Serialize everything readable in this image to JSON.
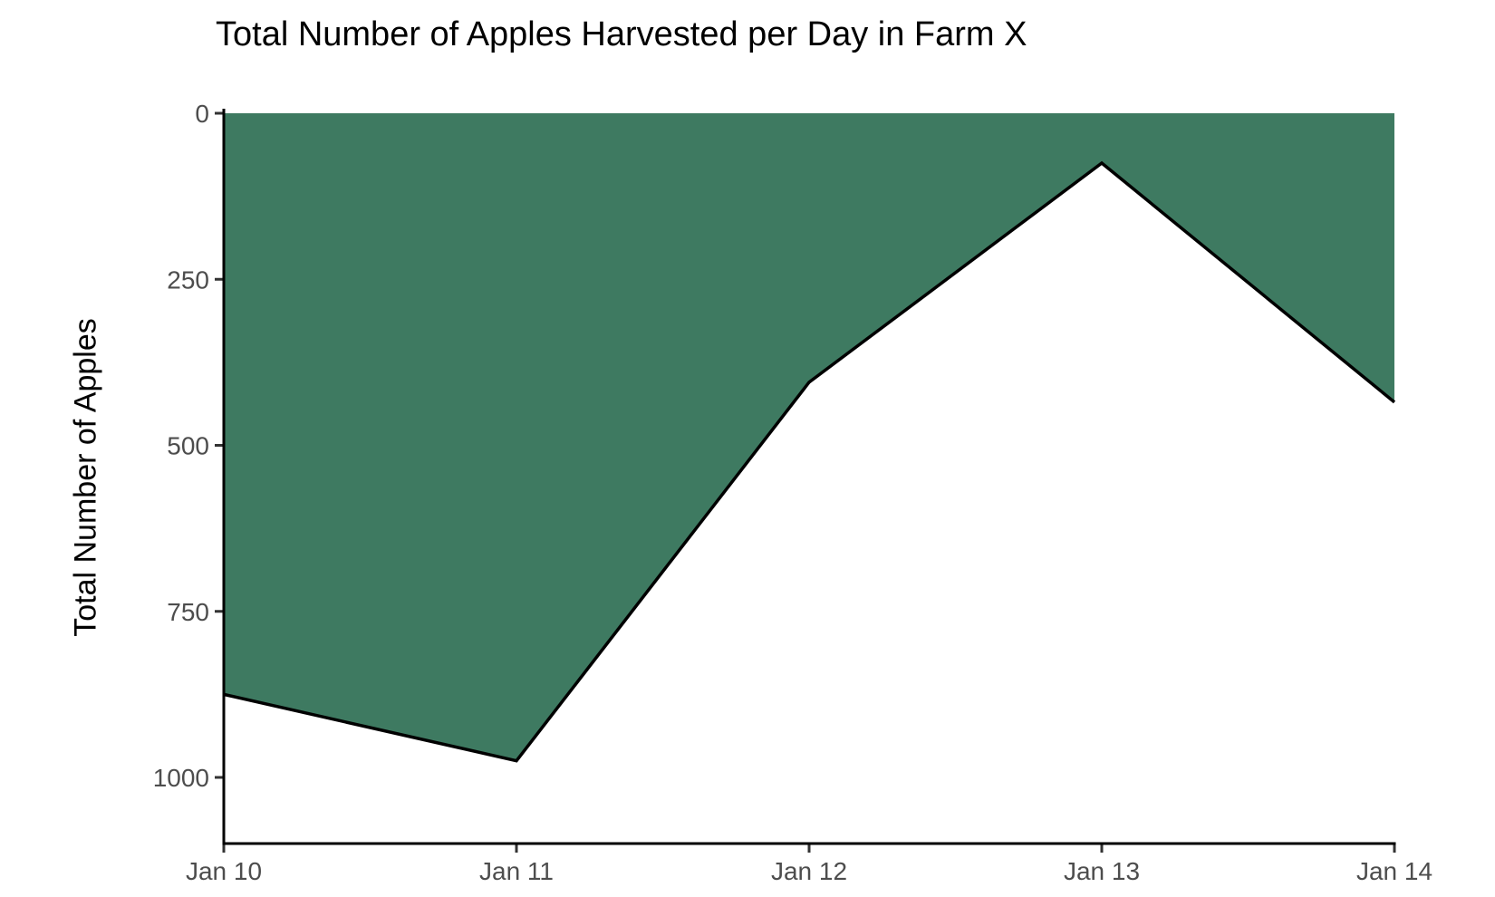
{
  "chart_data": {
    "type": "area",
    "title": "Total Number of Apples Harvested per Day in Farm X",
    "xlabel": "",
    "ylabel": "Total Number of Apples",
    "categories": [
      "Jan 10",
      "Jan 11",
      "Jan 12",
      "Jan 13",
      "Jan 14"
    ],
    "values": [
      875,
      975,
      405,
      75,
      435
    ],
    "y_ticks": [
      0,
      250,
      500,
      750,
      1000
    ],
    "y_tick_labels": [
      "0",
      "250",
      "500",
      "750",
      "1000"
    ],
    "y_axis_reversed": true,
    "ylim": [
      0,
      1100
    ],
    "grid": false,
    "legend_position": "none",
    "area_baseline_value": 0,
    "colors": {
      "area_fill": "#3E7A61",
      "data_line": "#000000",
      "axis_line": "#000000",
      "tick_mark": "#333333",
      "tick_label": "#4D4D4D",
      "title_text": "#000000"
    }
  }
}
